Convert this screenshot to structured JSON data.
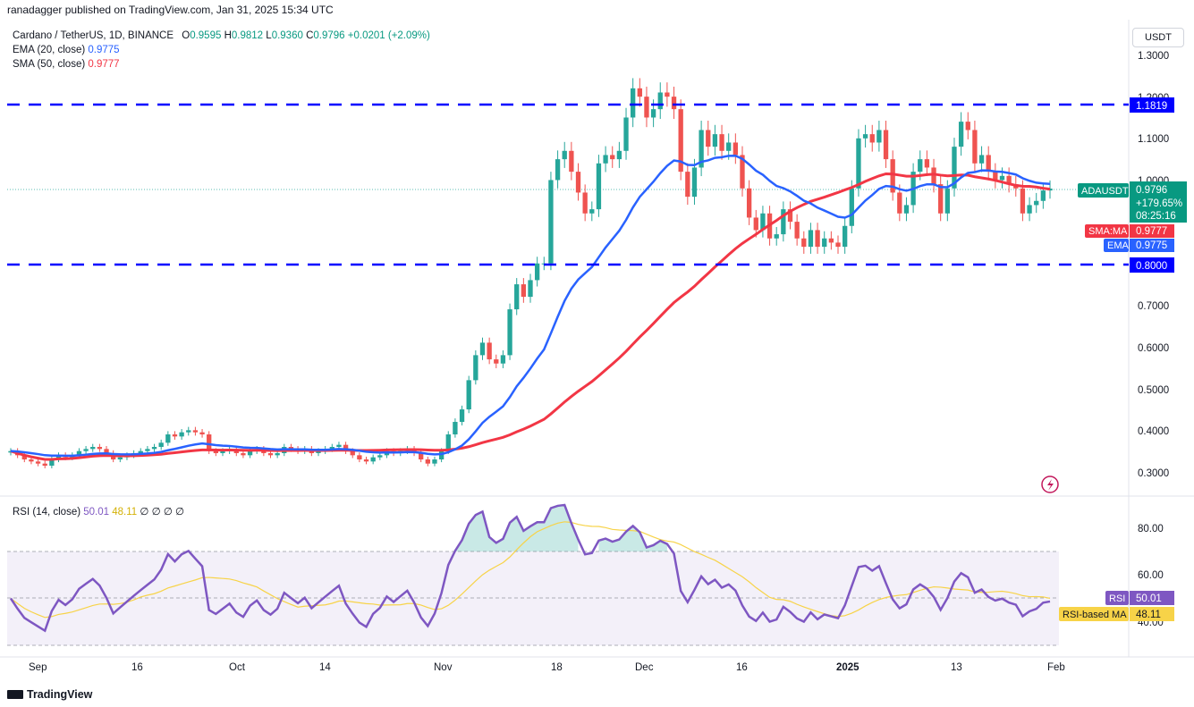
{
  "header": {
    "published": "ranadagger published on TradingView.com, Jan 31, 2025 15:34 UTC"
  },
  "legend": {
    "symbol": "Cardano / TetherUS, 1D, BINANCE",
    "ohlc": {
      "o_label": "O",
      "o": "0.9595",
      "h_label": "H",
      "h": "0.9812",
      "l_label": "L",
      "l": "0.9360",
      "c_label": "C",
      "c": "0.9796",
      "chg": "+0.0201 (+2.09%)"
    },
    "ema_label": "EMA (20, close)",
    "ema_value": "0.9775",
    "sma_label": "SMA (50, close)",
    "sma_value": "0.9777",
    "rsi_label": "RSI (14, close)",
    "rsi_value": "50.01",
    "rsi_ma_value": "48.11",
    "rsi_extra": "∅ ∅ ∅ ∅"
  },
  "axis": {
    "currency": "USDT",
    "price_ticks": [
      "1.3000",
      "1.2000",
      "1.1000",
      "1.0000",
      "0.7000",
      "0.6000",
      "0.5000",
      "0.4000",
      "0.3000"
    ],
    "rsi_ticks": [
      "80.00",
      "60.00",
      "40.00"
    ],
    "x_ticks": [
      "Sep",
      "16",
      "Oct",
      "14",
      "Nov",
      "18",
      "Dec",
      "16",
      "2025",
      "13",
      "Feb"
    ]
  },
  "labels": {
    "res_level": "1.1819",
    "sup_level": "0.8000",
    "symbol_tag": "ADAUSDT",
    "price_now": "0.9796",
    "pct_now": "+179.65%",
    "countdown": "08:25:16",
    "sma_tag": "SMA:MA",
    "sma_tag_value": "0.9777",
    "ema_tag": "EMA",
    "ema_tag_value": "0.9775",
    "rsi_tag": "RSI",
    "rsi_tag_value": "50.01",
    "rsima_tag": "RSI-based MA",
    "rsima_tag_value": "48.11"
  },
  "footer": {
    "brand": "TradingView"
  },
  "colors": {
    "up": "#26a69a",
    "down": "#ef5350",
    "ema": "#2962ff",
    "sma": "#f23645",
    "rsi": "#7e57c2",
    "rsima": "#f7d348",
    "line": "#0000ff"
  },
  "chart_data": {
    "type": "line",
    "title": "Cardano / TetherUS, 1D, BINANCE",
    "x_range": [
      "2024-08-31",
      "2025-01-31"
    ],
    "ylim": [
      0.27,
      1.34
    ],
    "horizontal_levels": [
      1.1819,
      0.8
    ],
    "close": [
      0.35,
      0.34,
      0.33,
      0.325,
      0.32,
      0.315,
      0.33,
      0.34,
      0.335,
      0.34,
      0.35,
      0.355,
      0.36,
      0.355,
      0.345,
      0.33,
      0.335,
      0.34,
      0.345,
      0.35,
      0.355,
      0.36,
      0.37,
      0.39,
      0.385,
      0.395,
      0.4,
      0.395,
      0.39,
      0.35,
      0.345,
      0.35,
      0.355,
      0.345,
      0.34,
      0.35,
      0.355,
      0.345,
      0.34,
      0.345,
      0.36,
      0.355,
      0.35,
      0.355,
      0.345,
      0.35,
      0.355,
      0.36,
      0.365,
      0.35,
      0.34,
      0.33,
      0.325,
      0.335,
      0.34,
      0.35,
      0.345,
      0.35,
      0.355,
      0.345,
      0.33,
      0.32,
      0.33,
      0.35,
      0.39,
      0.42,
      0.45,
      0.52,
      0.58,
      0.61,
      0.57,
      0.56,
      0.58,
      0.69,
      0.75,
      0.72,
      0.76,
      0.8,
      0.8,
      1.0,
      1.05,
      1.07,
      1.02,
      0.97,
      0.92,
      0.93,
      1.04,
      1.06,
      1.05,
      1.07,
      1.15,
      1.22,
      1.2,
      1.15,
      1.17,
      1.21,
      1.2,
      1.17,
      1.02,
      0.96,
      1.03,
      1.12,
      1.08,
      1.11,
      1.07,
      1.09,
      1.06,
      0.98,
      0.91,
      0.88,
      0.92,
      0.86,
      0.87,
      0.93,
      0.9,
      0.86,
      0.84,
      0.88,
      0.84,
      0.86,
      0.85,
      0.84,
      0.89,
      0.98,
      1.1,
      1.11,
      1.09,
      1.12,
      1.05,
      0.97,
      0.92,
      0.94,
      1.02,
      1.05,
      1.03,
      0.99,
      0.92,
      0.98,
      1.08,
      1.14,
      1.12,
      1.04,
      1.06,
      1.02,
      1.0,
      1.01,
      0.99,
      0.98,
      0.92,
      0.94,
      0.95,
      0.975,
      0.9796
    ],
    "series": [
      {
        "name": "EMA (20, close)",
        "last": 0.9775
      },
      {
        "name": "SMA (50, close)",
        "last": 0.9777
      },
      {
        "name": "RSI (14, close)",
        "last": 50.01,
        "range": [
          0,
          100
        ],
        "bands": [
          70,
          50,
          30
        ]
      },
      {
        "name": "RSI-based MA",
        "last": 48.11
      }
    ]
  }
}
